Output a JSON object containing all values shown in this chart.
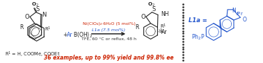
{
  "background_color": "#ffffff",
  "fig_width": 3.78,
  "fig_height": 0.91,
  "dpi": 100,
  "condition_line1": "Ni(ClO₄)₂·6H₂O (5 mol%)",
  "condition_line2": "L1a (7.5 mol%)",
  "condition_line3": "TFE, 60 °C or reflux, 48 h",
  "bottom_text": "36 examples, up to 99% yield and 99.8% ee",
  "l1a_label": "L1a =",
  "r1_label_bottom": "R¹ = H, COOMe, COOEt",
  "cond1_color": "#cc2200",
  "cond2_color": "#2255cc",
  "cond3_color": "#333333",
  "bottom_text_color": "#cc2200",
  "l1a_color": "#2255cc",
  "black_color": "#222222",
  "blue_color": "#2255cc"
}
